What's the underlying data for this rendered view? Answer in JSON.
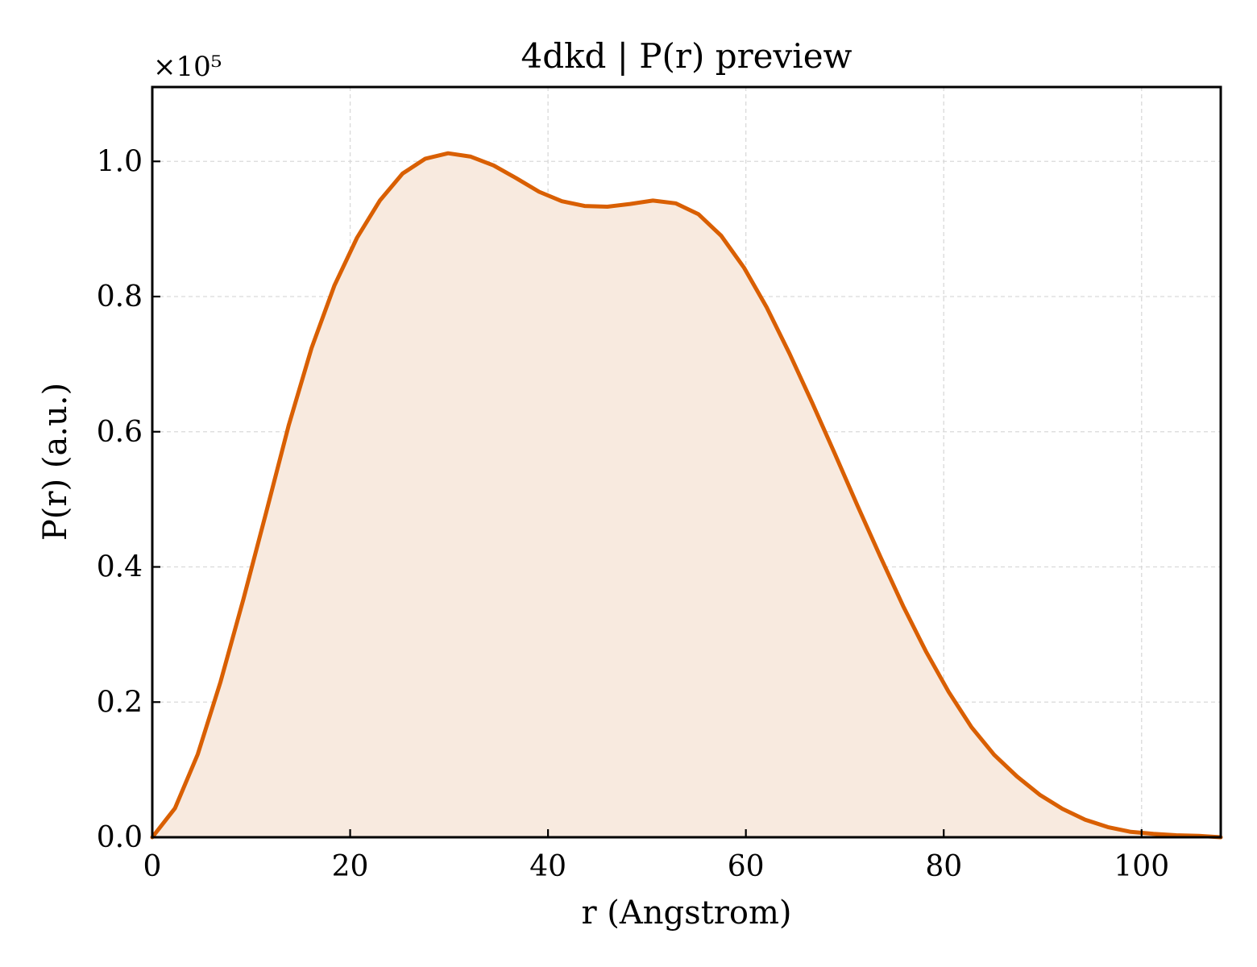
{
  "chart_data": {
    "type": "area",
    "title": "4dkd | P(r) preview",
    "xlabel": "r (Angstrom)",
    "ylabel": "P(r) (a.u.)",
    "y_offset_label": "×10⁵",
    "xlim": [
      0,
      108
    ],
    "ylim": [
      0,
      1.11
    ],
    "y_scale_factor": 100000,
    "xticks": [
      0,
      20,
      40,
      60,
      80,
      100
    ],
    "xtick_labels": [
      "0",
      "20",
      "40",
      "60",
      "80",
      "100"
    ],
    "yticks": [
      0.0,
      0.2,
      0.4,
      0.6,
      0.8,
      1.0
    ],
    "ytick_labels": [
      "0.0",
      "0.2",
      "0.4",
      "0.6",
      "0.8",
      "1.0"
    ],
    "grid": true,
    "line_color": "#d95f02",
    "fill_color": "#f8eadf",
    "series": [
      {
        "x": [
          0,
          2.3,
          4.6,
          6.9,
          9.2,
          11.5,
          13.8,
          16.1,
          18.4,
          20.7,
          23.0,
          25.3,
          27.6,
          29.9,
          32.2,
          34.5,
          36.8,
          39.1,
          41.4,
          43.7,
          46.0,
          48.3,
          50.6,
          52.9,
          55.2,
          57.5,
          59.8,
          62.1,
          64.4,
          66.7,
          69.0,
          71.3,
          73.6,
          75.9,
          78.2,
          80.5,
          82.8,
          85.1,
          87.4,
          89.7,
          92.0,
          94.3,
          96.6,
          98.9,
          101.2,
          103.5,
          105.8,
          108.0
        ],
        "y": [
          0.0,
          0.043,
          0.123,
          0.23,
          0.352,
          0.48,
          0.61,
          0.724,
          0.816,
          0.887,
          0.942,
          0.982,
          1.004,
          1.012,
          1.007,
          0.994,
          0.975,
          0.955,
          0.941,
          0.934,
          0.933,
          0.937,
          0.942,
          0.938,
          0.922,
          0.89,
          0.843,
          0.784,
          0.716,
          0.643,
          0.567,
          0.49,
          0.415,
          0.342,
          0.275,
          0.215,
          0.163,
          0.122,
          0.09,
          0.063,
          0.042,
          0.026,
          0.015,
          0.008,
          0.005,
          0.003,
          0.002,
          0.0
        ]
      }
    ]
  }
}
